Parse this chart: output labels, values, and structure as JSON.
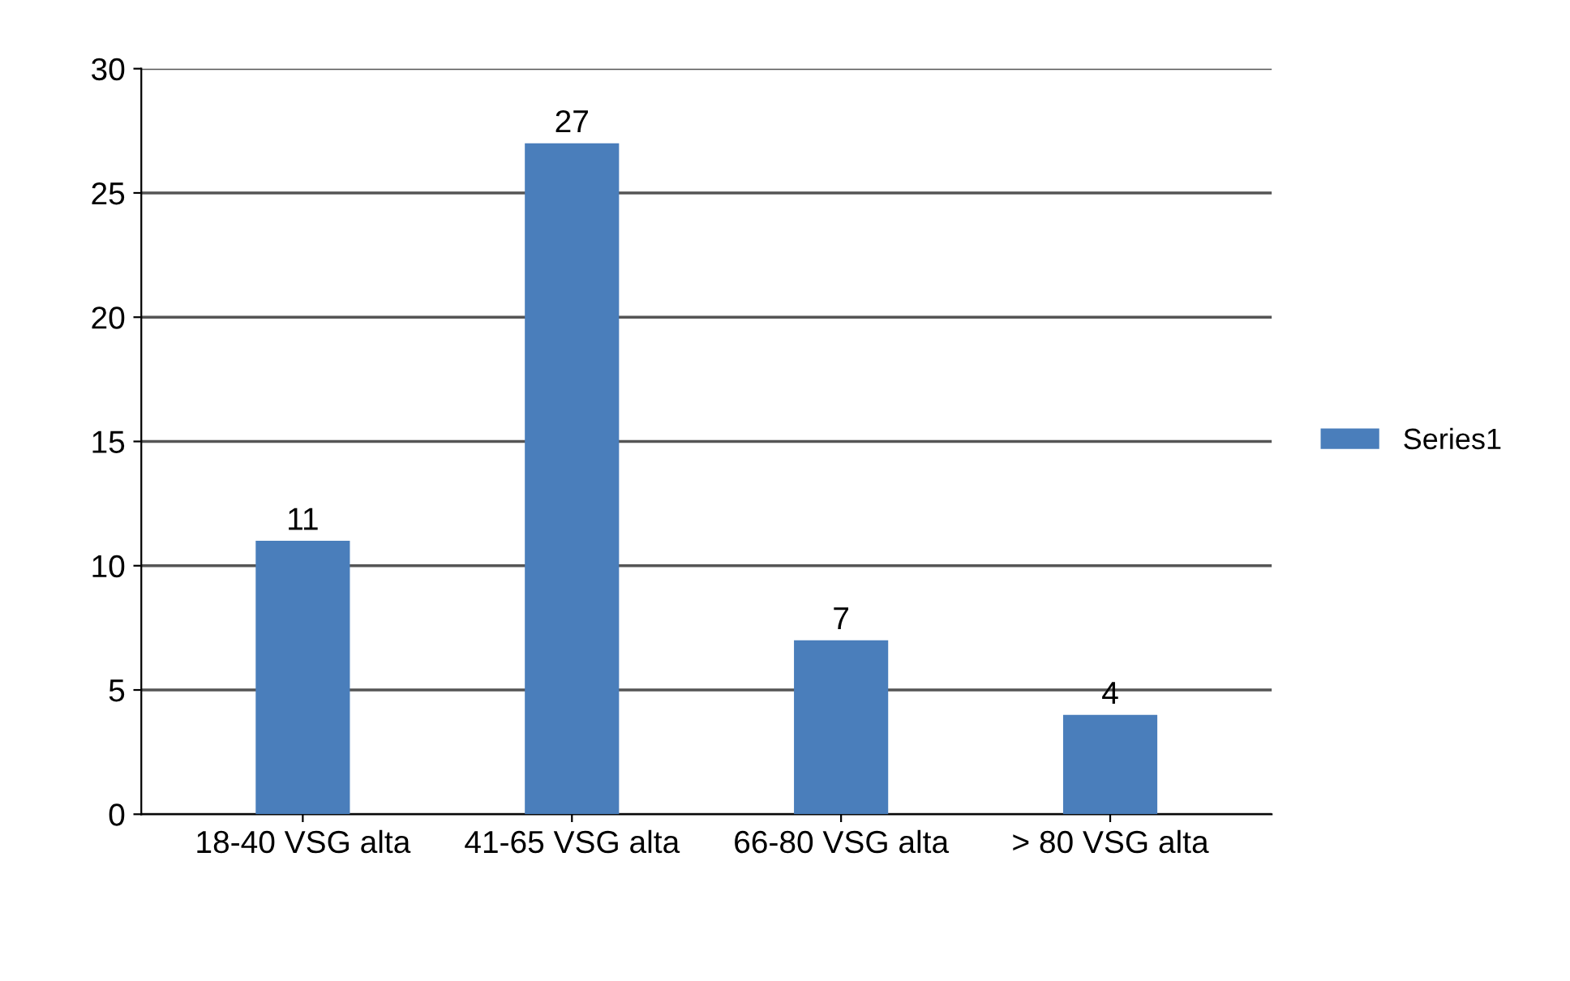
{
  "chart_data": {
    "type": "bar",
    "categories": [
      "18-40 VSG alta",
      "41-65 VSG alta",
      "66-80 VSG alta",
      "> 80 VSG alta"
    ],
    "series": [
      {
        "name": "Series1",
        "color": "#4a7ebb",
        "values": [
          11,
          27,
          7,
          4
        ]
      }
    ],
    "ylim": [
      0,
      30
    ],
    "yticks": [
      0,
      5,
      10,
      15,
      20,
      25,
      30
    ],
    "grid": "y",
    "legend": "right",
    "data_labels": true
  }
}
